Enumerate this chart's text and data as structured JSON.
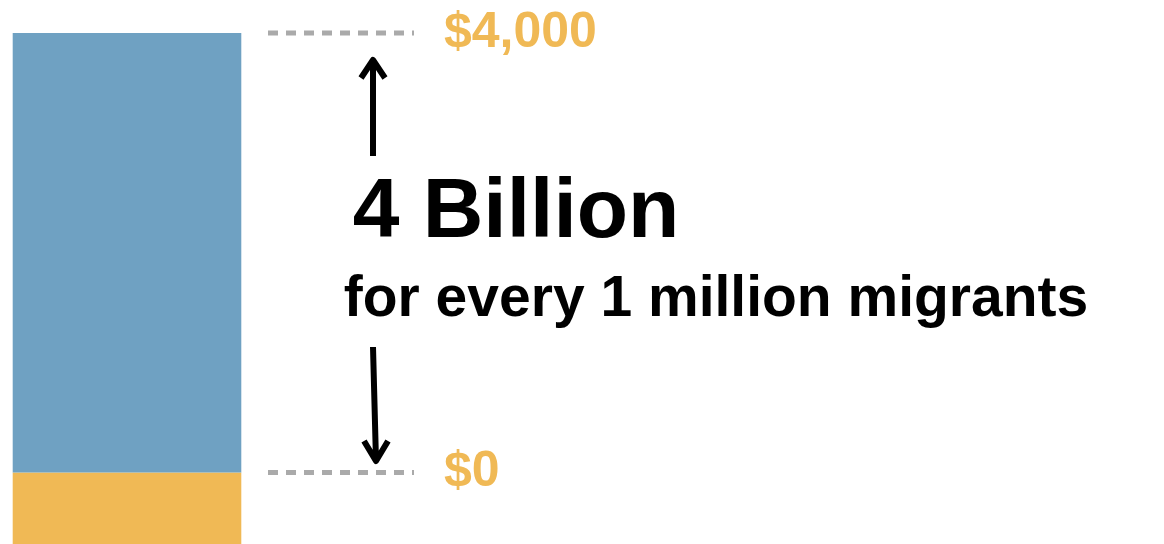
{
  "chart_data": {
    "type": "bar",
    "stacked": true,
    "categories": [
      null
    ],
    "series": [
      {
        "color": "#6fa1c2",
        "values": [
          4000
        ]
      },
      {
        "color": "#f0b955",
        "values": [
          -650
        ]
      }
    ],
    "ylim": [
      -650,
      4000
    ],
    "tick_labels": false,
    "legend": false,
    "ref_lines": [
      {
        "axis": "y",
        "value": 4000,
        "label": "$4,000",
        "color": "#aaaaaa",
        "line_style": "dashed"
      },
      {
        "axis": "y",
        "value": 0,
        "label": "$0",
        "color": "#aaaaaa",
        "line_style": "dashed"
      }
    ],
    "annotations": [
      "4 Billion",
      "for every 1 million migrants"
    ]
  }
}
